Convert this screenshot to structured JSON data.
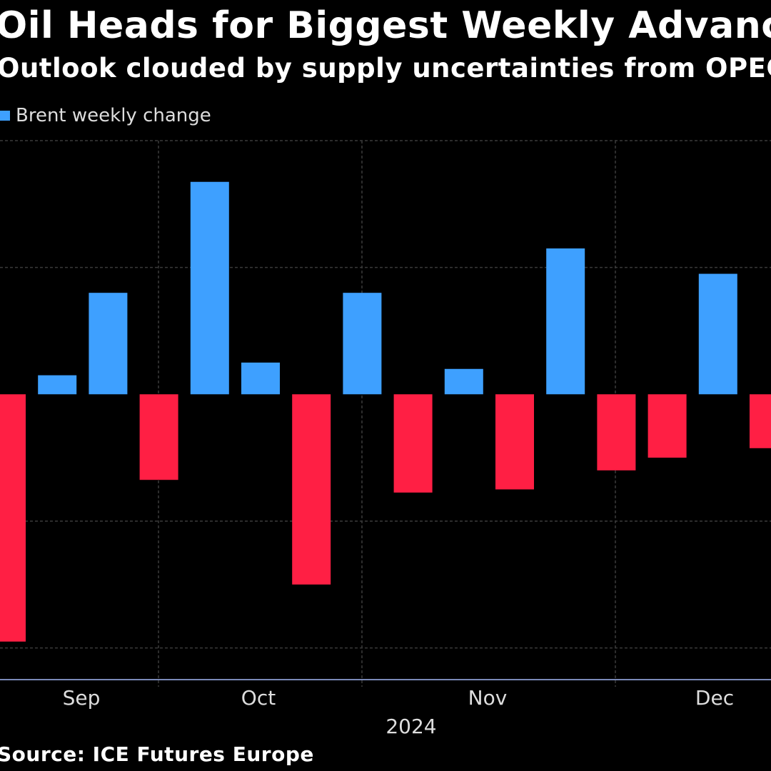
{
  "title": "Oil Heads for Biggest Weekly Advance",
  "subtitle": "Outlook clouded by supply uncertainties from OPEC+",
  "source": "Source: ICE Futures Europe",
  "colors": {
    "background": "#000000",
    "positive": "#3ea0ff",
    "negative": "#ff1f44",
    "grid": "#3a3a3a",
    "axis": "#7b8ab8",
    "text": "#dddddd"
  },
  "chart_data": {
    "type": "bar",
    "title": "Oil Heads for Biggest Weekly Advance",
    "subtitle": "Outlook clouded by supply uncertainties from OPEC+",
    "legend": [
      "Brent weekly change"
    ],
    "series": [
      {
        "name": "Brent weekly change",
        "values": [
          -7.8,
          0.6,
          3.2,
          -2.7,
          6.7,
          1.0,
          -6.0,
          3.2,
          -3.1,
          0.8,
          -3.0,
          4.6,
          -2.4,
          -2.0,
          3.8,
          -1.7
        ]
      }
    ],
    "month_ticks": [
      "Sep",
      "Oct",
      "Nov",
      "Dec"
    ],
    "year_label": "2024",
    "ylim": [
      -9,
      8
    ],
    "grid_values": [
      -8,
      -4,
      0,
      4,
      8
    ],
    "xlabel": "",
    "ylabel": ""
  }
}
